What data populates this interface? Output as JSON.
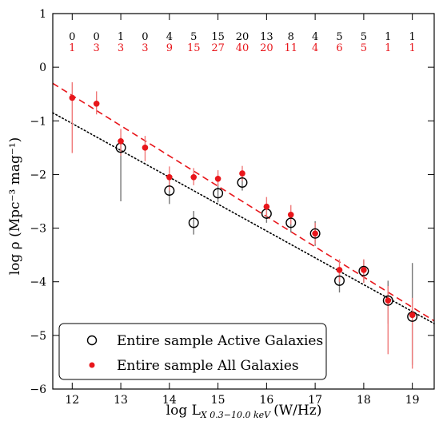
{
  "chart_data": {
    "type": "scatter",
    "xlabel_main": "log L",
    "xlabel_sub": "X 0.3−10.0 keV",
    "xlabel_unit": "(W/Hz)",
    "ylabel": "log ρ (Mpc⁻³ mag⁻¹)",
    "xlim": [
      11.6,
      19.45
    ],
    "ylim": [
      -6,
      1
    ],
    "x_ticks": [
      12,
      13,
      14,
      15,
      16,
      17,
      18,
      19
    ],
    "y_ticks": [
      -6,
      -5,
      -4,
      -3,
      -2,
      -1,
      0,
      1
    ],
    "legend_position": "bottom-left",
    "counts": {
      "x": [
        12,
        12.5,
        13,
        13.5,
        14,
        14.5,
        15,
        15.5,
        16,
        16.5,
        17,
        17.5,
        18,
        18.5,
        19
      ],
      "active": [
        "0",
        "0",
        "1",
        "0",
        "4",
        "5",
        "15",
        "20",
        "13",
        "8",
        "4",
        "5",
        "5",
        "1",
        "1"
      ],
      "all": [
        "1",
        "3",
        "3",
        "3",
        "9",
        "15",
        "27",
        "40",
        "20",
        "11",
        "4",
        "6",
        "5",
        "1",
        "1"
      ]
    },
    "series": [
      {
        "name": "Entire sample Active Galaxies",
        "marker": "open-circle",
        "color": "#000000",
        "errorbar_color": "#777777",
        "points": [
          {
            "x": 13.0,
            "y": -1.5,
            "lo": -2.5,
            "hi": -1.3
          },
          {
            "x": 14.0,
            "y": -2.3,
            "lo": -2.55,
            "hi": -2.05
          },
          {
            "x": 14.5,
            "y": -2.9,
            "lo": -3.12,
            "hi": -2.68
          },
          {
            "x": 15.0,
            "y": -2.35,
            "lo": -2.52,
            "hi": -2.18
          },
          {
            "x": 15.5,
            "y": -2.15,
            "lo": -2.3,
            "hi": -2.0
          },
          {
            "x": 16.0,
            "y": -2.73,
            "lo": -2.9,
            "hi": -2.56
          },
          {
            "x": 16.5,
            "y": -2.9,
            "lo": -3.08,
            "hi": -2.72
          },
          {
            "x": 17.0,
            "y": -3.1,
            "lo": -3.33,
            "hi": -2.87
          },
          {
            "x": 17.5,
            "y": -3.98,
            "lo": -4.2,
            "hi": -3.77
          },
          {
            "x": 18.0,
            "y": -3.8,
            "lo": -4.02,
            "hi": -3.6
          },
          {
            "x": 18.5,
            "y": -4.35,
            "lo": -4.78,
            "hi": -3.98
          },
          {
            "x": 19.0,
            "y": -4.65,
            "lo": -5.55,
            "hi": -3.65
          }
        ]
      },
      {
        "name": "Entire sample All Galaxies",
        "marker": "filled-dot",
        "color": "#e8161b",
        "errorbar_color": "#f07a7a",
        "points": [
          {
            "x": 12.0,
            "y": -0.57,
            "lo": -1.6,
            "hi": -0.28
          },
          {
            "x": 12.5,
            "y": -0.68,
            "lo": -0.88,
            "hi": -0.45
          },
          {
            "x": 13.0,
            "y": -1.38,
            "lo": -1.65,
            "hi": -1.15
          },
          {
            "x": 13.5,
            "y": -1.5,
            "lo": -1.75,
            "hi": -1.28
          },
          {
            "x": 14.0,
            "y": -2.05,
            "lo": -2.3,
            "hi": -1.85
          },
          {
            "x": 14.5,
            "y": -2.05,
            "lo": -2.2,
            "hi": -1.88
          },
          {
            "x": 15.0,
            "y": -2.08,
            "lo": -2.22,
            "hi": -1.92
          },
          {
            "x": 15.5,
            "y": -1.98,
            "lo": -2.12,
            "hi": -1.84
          },
          {
            "x": 16.0,
            "y": -2.6,
            "lo": -2.78,
            "hi": -2.42
          },
          {
            "x": 16.5,
            "y": -2.75,
            "lo": -2.93,
            "hi": -2.57
          },
          {
            "x": 17.0,
            "y": -3.1,
            "lo": -3.3,
            "hi": -2.9
          },
          {
            "x": 17.5,
            "y": -3.78,
            "lo": -4.0,
            "hi": -3.58
          },
          {
            "x": 18.0,
            "y": -3.78,
            "lo": -4.02,
            "hi": -3.58
          },
          {
            "x": 18.5,
            "y": -4.35,
            "lo": -5.35,
            "hi": -4.08
          },
          {
            "x": 19.0,
            "y": -4.62,
            "lo": -5.62,
            "hi": -4.3
          }
        ]
      }
    ],
    "fits": [
      {
        "style": "dotted",
        "color": "#000000",
        "x": [
          11.6,
          19.45
        ],
        "y": [
          -0.85,
          -4.78
        ]
      },
      {
        "style": "dashed",
        "color": "#e8161b",
        "x": [
          11.6,
          19.45
        ],
        "y": [
          -0.3,
          -4.73
        ]
      }
    ]
  }
}
